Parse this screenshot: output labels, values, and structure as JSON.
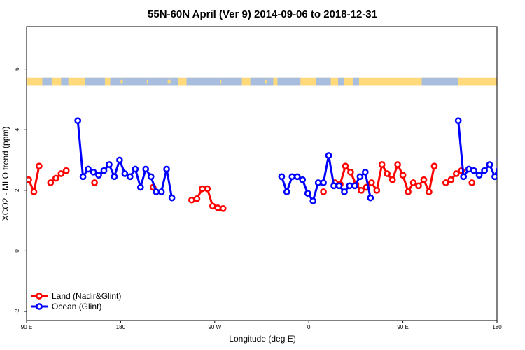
{
  "chart_data": {
    "type": "line",
    "title": "55N-60N April (Ver 9)   2014-09-06 to 2018-12-31",
    "xlabel": "Longitude (deg E)",
    "ylabel": "XCO2 - MLO trend (ppm)",
    "xlim": [
      90,
      540
    ],
    "ylim": [
      -2.3,
      7.4
    ],
    "xticks": [
      {
        "value": 90,
        "label": "90 E"
      },
      {
        "value": 180,
        "label": "180"
      },
      {
        "value": 270,
        "label": "90 W"
      },
      {
        "value": 360,
        "label": "0"
      },
      {
        "value": 450,
        "label": "90 E"
      },
      {
        "value": 540,
        "label": "180"
      }
    ],
    "yticks": [
      -2,
      0,
      2,
      4,
      6
    ],
    "grid": false,
    "legend_position": "bottom-left",
    "land_ocean_band": {
      "y_range": [
        5.45,
        5.72
      ],
      "land_color": "#FFD97A",
      "ocean_color": "#A8BEDE"
    },
    "series": [
      {
        "name": "Land (Nadir&Glint)",
        "color": "#FF0000",
        "segments": [
          [
            [
              92,
              2.35
            ],
            [
              97,
              1.95
            ],
            [
              102,
              2.8
            ]
          ],
          [
            [
              113,
              2.25
            ],
            [
              118,
              2.4
            ],
            [
              123,
              2.55
            ],
            [
              128,
              2.65
            ]
          ],
          [
            [
              155,
              2.25
            ]
          ],
          [
            [
              211,
              2.1
            ]
          ],
          [
            [
              248,
              1.68
            ],
            [
              253,
              1.72
            ],
            [
              258,
              2.05
            ],
            [
              263,
              2.05
            ],
            [
              268,
              1.48
            ],
            [
              273,
              1.42
            ],
            [
              278,
              1.4
            ]
          ],
          [
            [
              374,
              1.95
            ]
          ],
          [
            [
              385,
              2.25
            ],
            [
              390,
              2.2
            ],
            [
              395,
              2.8
            ],
            [
              400,
              2.6
            ],
            [
              405,
              2.2
            ],
            [
              410,
              2.0
            ],
            [
              415,
              2.1
            ],
            [
              420,
              2.25
            ],
            [
              425,
              2.0
            ],
            [
              430,
              2.85
            ],
            [
              435,
              2.55
            ],
            [
              440,
              2.35
            ],
            [
              445,
              2.85
            ],
            [
              450,
              2.5
            ],
            [
              455,
              1.95
            ],
            [
              460,
              2.25
            ],
            [
              465,
              2.15
            ],
            [
              470,
              2.35
            ],
            [
              475,
              1.95
            ],
            [
              480,
              2.8
            ]
          ],
          [
            [
              491,
              2.25
            ],
            [
              496,
              2.35
            ],
            [
              501,
              2.55
            ],
            [
              506,
              2.65
            ]
          ],
          [
            [
              516,
              2.25
            ]
          ]
        ]
      },
      {
        "name": "Ocean (Glint)",
        "color": "#0000FF",
        "segments": [
          [
            [
              139,
              4.3
            ],
            [
              144,
              2.45
            ],
            [
              149,
              2.7
            ],
            [
              154,
              2.6
            ],
            [
              159,
              2.5
            ],
            [
              164,
              2.65
            ],
            [
              169,
              2.85
            ],
            [
              174,
              2.45
            ],
            [
              179,
              3.0
            ],
            [
              184,
              2.55
            ],
            [
              189,
              2.45
            ],
            [
              194,
              2.7
            ],
            [
              199,
              2.1
            ],
            [
              204,
              2.7
            ],
            [
              209,
              2.45
            ],
            [
              214,
              1.95
            ],
            [
              219,
              1.95
            ],
            [
              224,
              2.7
            ],
            [
              229,
              1.75
            ]
          ],
          [
            [
              334,
              2.45
            ],
            [
              339,
              1.95
            ],
            [
              344,
              2.45
            ],
            [
              349,
              2.45
            ],
            [
              354,
              2.35
            ],
            [
              359,
              1.9
            ],
            [
              364,
              1.65
            ],
            [
              369,
              2.25
            ],
            [
              374,
              2.25
            ],
            [
              379,
              3.15
            ],
            [
              384,
              2.15
            ],
            [
              389,
              2.15
            ],
            [
              394,
              1.95
            ],
            [
              399,
              2.15
            ],
            [
              404,
              2.15
            ],
            [
              409,
              2.45
            ],
            [
              414,
              2.6
            ],
            [
              419,
              1.75
            ]
          ],
          [
            [
              503,
              4.3
            ],
            [
              508,
              2.45
            ],
            [
              513,
              2.7
            ],
            [
              518,
              2.65
            ],
            [
              523,
              2.5
            ],
            [
              528,
              2.65
            ],
            [
              533,
              2.85
            ],
            [
              538,
              2.45
            ],
            [
              543,
              3.0
            ]
          ]
        ]
      }
    ]
  }
}
